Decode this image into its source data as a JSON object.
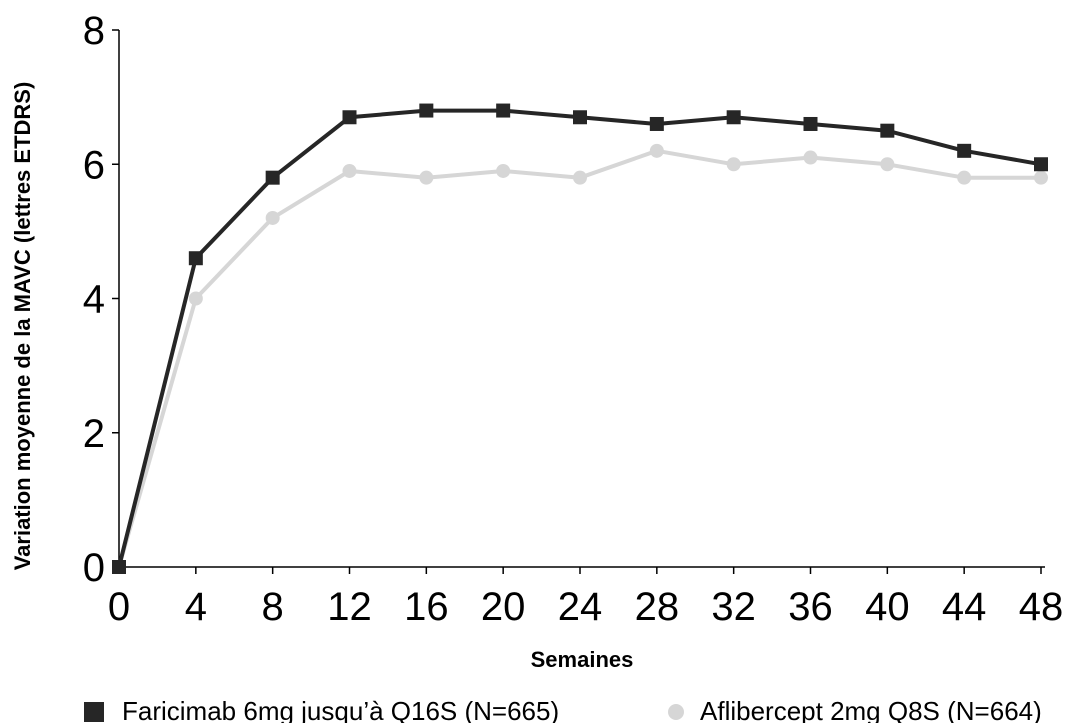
{
  "chart_data": {
    "type": "line",
    "title": "",
    "xlabel": "Semaines",
    "ylabel": "Variation moyenne de la MAVC (lettres ETDRS)",
    "x": [
      0,
      4,
      8,
      12,
      16,
      20,
      24,
      28,
      32,
      36,
      40,
      44,
      48
    ],
    "xticks": [
      "0",
      "4",
      "8",
      "12",
      "16",
      "20",
      "24",
      "28",
      "32",
      "36",
      "40",
      "44",
      "48"
    ],
    "yticks": [
      "0",
      "2",
      "4",
      "6",
      "8"
    ],
    "xlim": [
      0,
      48
    ],
    "ylim": [
      0,
      8
    ],
    "grid": false,
    "legend_position": "bottom",
    "series": [
      {
        "name": "Faricimab 6mg jusqu’à Q16S (N=665)",
        "color": "#262626",
        "marker": "square",
        "values": [
          0,
          4.6,
          5.8,
          6.7,
          6.8,
          6.8,
          6.7,
          6.6,
          6.7,
          6.6,
          6.5,
          6.2,
          6.0
        ]
      },
      {
        "name": "Aflibercept 2mg Q8S (N=664)",
        "color": "#d6d6d6",
        "marker": "circle",
        "values": [
          0,
          4.0,
          5.2,
          5.9,
          5.8,
          5.9,
          5.8,
          6.2,
          6.0,
          6.1,
          6.0,
          5.8,
          5.8
        ]
      }
    ]
  }
}
